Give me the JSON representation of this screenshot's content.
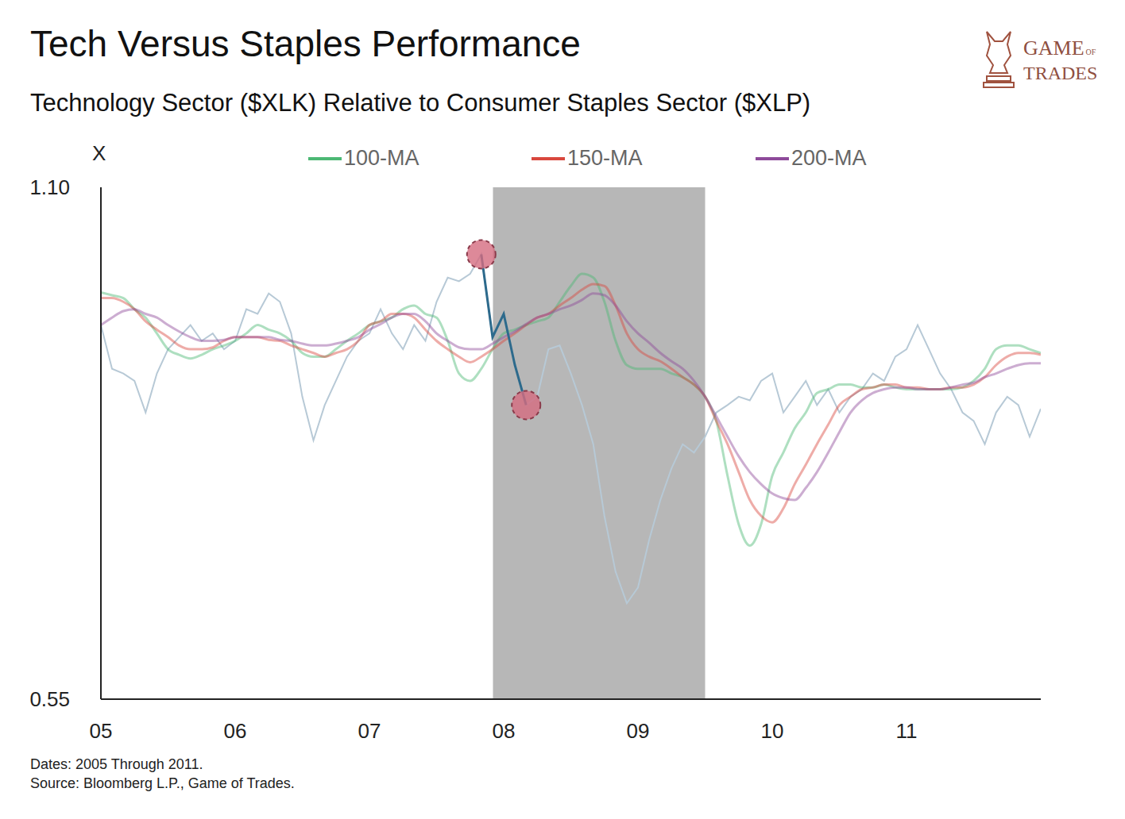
{
  "chart_data": {
    "type": "line",
    "title": "Tech Versus Staples Performance",
    "subtitle": "Technology Sector ($XLK) Relative to Consumer Staples Sector ($XLP)",
    "y_label": "X",
    "brand": {
      "line1": "GAME",
      "small": "OF",
      "line2": "TRADES"
    },
    "notes": [
      "Dates: 2005 Through 2011.",
      "Source: Bloomberg L.P., Game of Trades."
    ],
    "x": [
      2005,
      2005.083,
      2005.167,
      2005.25,
      2005.333,
      2005.417,
      2005.5,
      2005.583,
      2005.667,
      2005.75,
      2005.833,
      2005.917,
      2006,
      2006.083,
      2006.167,
      2006.25,
      2006.333,
      2006.417,
      2006.5,
      2006.583,
      2006.667,
      2006.75,
      2006.833,
      2006.917,
      2007,
      2007.083,
      2007.167,
      2007.25,
      2007.333,
      2007.417,
      2007.5,
      2007.583,
      2007.667,
      2007.75,
      2007.833,
      2007.917,
      2008,
      2008.083,
      2008.167,
      2008.25,
      2008.333,
      2008.417,
      2008.5,
      2008.583,
      2008.667,
      2008.75,
      2008.833,
      2008.917,
      2009,
      2009.083,
      2009.167,
      2009.25,
      2009.333,
      2009.417,
      2009.5,
      2009.583,
      2009.667,
      2009.75,
      2009.833,
      2009.917,
      2010,
      2010.083,
      2010.167,
      2010.25,
      2010.333,
      2010.417,
      2010.5,
      2010.583,
      2010.667,
      2010.75,
      2010.833,
      2010.917,
      2011,
      2011.083,
      2011.167,
      2011.25,
      2011.333,
      2011.417,
      2011.5,
      2011.583,
      2011.667,
      2011.75,
      2011.833,
      2011.917,
      2012
    ],
    "values": [
      0.952,
      0.905,
      0.9,
      0.892,
      0.858,
      0.9,
      0.926,
      0.939,
      0.952,
      0.935,
      0.943,
      0.926,
      0.935,
      0.969,
      0.964,
      0.986,
      0.977,
      0.943,
      0.875,
      0.828,
      0.866,
      0.892,
      0.918,
      0.935,
      0.943,
      0.969,
      0.943,
      0.926,
      0.952,
      0.935,
      0.977,
      1.003,
      0.999,
      1.007,
      1.028,
      0.939,
      0.964,
      0.909,
      0.866,
      0.875,
      0.926,
      0.93,
      0.9,
      0.866,
      0.824,
      0.747,
      0.687,
      0.653,
      0.67,
      0.721,
      0.764,
      0.798,
      0.824,
      0.815,
      0.832,
      0.858,
      0.866,
      0.875,
      0.871,
      0.892,
      0.9,
      0.858,
      0.875,
      0.892,
      0.866,
      0.883,
      0.858,
      0.875,
      0.883,
      0.9,
      0.892,
      0.918,
      0.926,
      0.952,
      0.926,
      0.9,
      0.883,
      0.858,
      0.849,
      0.824,
      0.858,
      0.875,
      0.866,
      0.832,
      0.862
    ],
    "color": "#b7c9d6",
    "series": [
      {
        "name": "100-MA",
        "color": "#4cb874",
        "values": [
          0.987,
          0.984,
          0.981,
          0.969,
          0.96,
          0.943,
          0.926,
          0.92,
          0.916,
          0.92,
          0.926,
          0.93,
          0.935,
          0.943,
          0.952,
          0.947,
          0.943,
          0.935,
          0.922,
          0.918,
          0.918,
          0.926,
          0.935,
          0.943,
          0.952,
          0.956,
          0.96,
          0.969,
          0.973,
          0.964,
          0.96,
          0.935,
          0.9,
          0.892,
          0.905,
          0.926,
          0.943,
          0.947,
          0.952,
          0.956,
          0.96,
          0.977,
          0.994,
          1.007,
          1.003,
          0.977,
          0.935,
          0.909,
          0.905,
          0.905,
          0.905,
          0.9,
          0.896,
          0.888,
          0.875,
          0.849,
          0.79,
          0.738,
          0.715,
          0.738,
          0.79,
          0.815,
          0.841,
          0.858,
          0.879,
          0.883,
          0.888,
          0.888,
          0.885,
          0.885,
          0.888,
          0.885,
          0.883,
          0.883,
          0.883,
          0.883,
          0.883,
          0.885,
          0.892,
          0.905,
          0.926,
          0.93,
          0.93,
          0.926,
          0.922
        ]
      },
      {
        "name": "150-MA",
        "color": "#d9473d",
        "values": [
          0.981,
          0.981,
          0.977,
          0.969,
          0.956,
          0.947,
          0.939,
          0.93,
          0.926,
          0.926,
          0.928,
          0.935,
          0.939,
          0.939,
          0.939,
          0.936,
          0.935,
          0.93,
          0.926,
          0.922,
          0.918,
          0.922,
          0.926,
          0.935,
          0.952,
          0.956,
          0.964,
          0.964,
          0.96,
          0.947,
          0.935,
          0.926,
          0.918,
          0.912,
          0.918,
          0.926,
          0.935,
          0.943,
          0.952,
          0.96,
          0.964,
          0.973,
          0.981,
          0.99,
          0.996,
          0.994,
          0.973,
          0.943,
          0.926,
          0.918,
          0.913,
          0.905,
          0.896,
          0.888,
          0.875,
          0.849,
          0.824,
          0.794,
          0.764,
          0.747,
          0.74,
          0.755,
          0.781,
          0.802,
          0.824,
          0.845,
          0.866,
          0.875,
          0.883,
          0.885,
          0.888,
          0.888,
          0.885,
          0.885,
          0.883,
          0.883,
          0.885,
          0.885,
          0.888,
          0.896,
          0.909,
          0.918,
          0.922,
          0.922,
          0.92
        ]
      },
      {
        "name": "200-MA",
        "color": "#8e4a9a",
        "values": [
          0.952,
          0.96,
          0.967,
          0.969,
          0.964,
          0.96,
          0.952,
          0.945,
          0.939,
          0.935,
          0.935,
          0.936,
          0.939,
          0.939,
          0.939,
          0.939,
          0.936,
          0.935,
          0.932,
          0.93,
          0.93,
          0.932,
          0.935,
          0.939,
          0.947,
          0.953,
          0.96,
          0.964,
          0.964,
          0.956,
          0.943,
          0.935,
          0.928,
          0.926,
          0.926,
          0.932,
          0.939,
          0.945,
          0.953,
          0.96,
          0.964,
          0.969,
          0.973,
          0.979,
          0.986,
          0.984,
          0.973,
          0.956,
          0.943,
          0.933,
          0.922,
          0.913,
          0.905,
          0.892,
          0.875,
          0.854,
          0.832,
          0.811,
          0.794,
          0.781,
          0.771,
          0.766,
          0.764,
          0.777,
          0.794,
          0.815,
          0.837,
          0.858,
          0.871,
          0.879,
          0.883,
          0.885,
          0.885,
          0.883,
          0.883,
          0.883,
          0.885,
          0.888,
          0.89,
          0.896,
          0.9,
          0.905,
          0.909,
          0.911,
          0.911
        ]
      }
    ],
    "highlight": {
      "x": [
        2007.833,
        2008.167
      ],
      "color": "#2d6a8c",
      "marker": "circle"
    },
    "shaded": {
      "x": [
        2007.92,
        2009.5
      ],
      "color": "#b7b7b7"
    },
    "xlim": [
      2005,
      2012
    ],
    "xticks": [
      {
        "value": 2005,
        "label": "05"
      },
      {
        "value": 2006,
        "label": "06"
      },
      {
        "value": 2007,
        "label": "07"
      },
      {
        "value": 2008,
        "label": "08"
      },
      {
        "value": 2009,
        "label": "09"
      },
      {
        "value": 2010,
        "label": "10"
      },
      {
        "value": 2011,
        "label": "11"
      }
    ],
    "ylim": [
      0.55,
      1.1
    ],
    "yticks": [
      0.55,
      {
        "value": 1.1,
        "label": "1.10"
      }
    ],
    "grid": false,
    "legend": "top"
  }
}
